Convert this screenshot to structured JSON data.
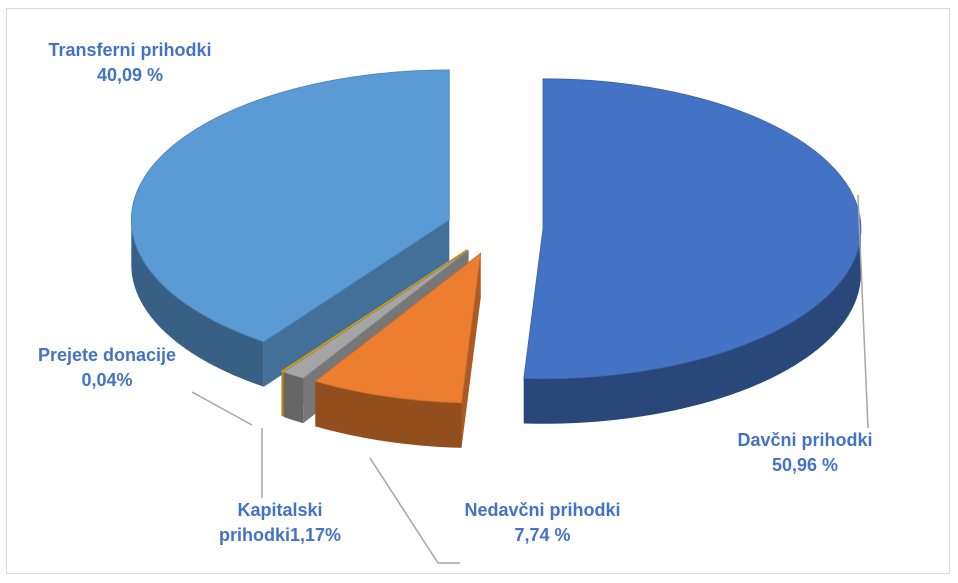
{
  "chart_data": {
    "type": "pie3d",
    "categories": [
      "Davčni prihodki",
      "Nedavčni prihodki",
      "Kapitalski prihodki",
      "Prejete donacije",
      "Transferni prihodki"
    ],
    "values": [
      50.96,
      7.74,
      1.17,
      0.04,
      40.09
    ],
    "value_labels": [
      "50,96 %",
      "7,74 %",
      "1,17%",
      "0,04%",
      "40,09 %"
    ],
    "colors": [
      "#4472c4",
      "#ed7d31",
      "#a5a5a5",
      "#ffc000",
      "#5b9bd5"
    ]
  }
}
